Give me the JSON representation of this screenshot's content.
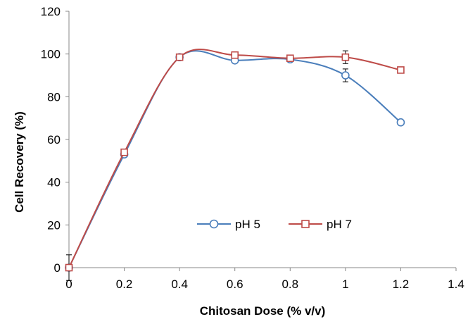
{
  "chart_data": {
    "type": "line",
    "title": "",
    "xlabel": "Chitosan Dose (% v/v)",
    "ylabel": "Cell Recovery (%)",
    "xlim": [
      0,
      1.4
    ],
    "ylim": [
      0,
      120
    ],
    "x_ticks": [
      "0",
      "0.2",
      "0.4",
      "0.6",
      "0.8",
      "1",
      "1.2",
      "1.4"
    ],
    "y_ticks": [
      "0",
      "20",
      "40",
      "60",
      "80",
      "100",
      "120"
    ],
    "grid": false,
    "legend_position": "bottom-center",
    "smoothed": true,
    "series": [
      {
        "name": "pH 5",
        "color": "#4a7ebb",
        "marker": "circle",
        "x": [
          0,
          0.2,
          0.4,
          0.6,
          0.8,
          1.0,
          1.2
        ],
        "y": [
          0,
          53,
          98.5,
          97,
          97.5,
          90,
          68
        ],
        "error": [
          0,
          0,
          1,
          1,
          1,
          3,
          0
        ]
      },
      {
        "name": "pH 7",
        "color": "#be4b48",
        "marker": "square",
        "x": [
          0,
          0.2,
          0.4,
          0.6,
          0.8,
          1.0,
          1.2
        ],
        "y": [
          0,
          54,
          98.5,
          99.5,
          98,
          98.5,
          92.5
        ],
        "error": [
          6,
          0,
          1,
          1,
          1,
          3,
          0
        ]
      }
    ]
  }
}
